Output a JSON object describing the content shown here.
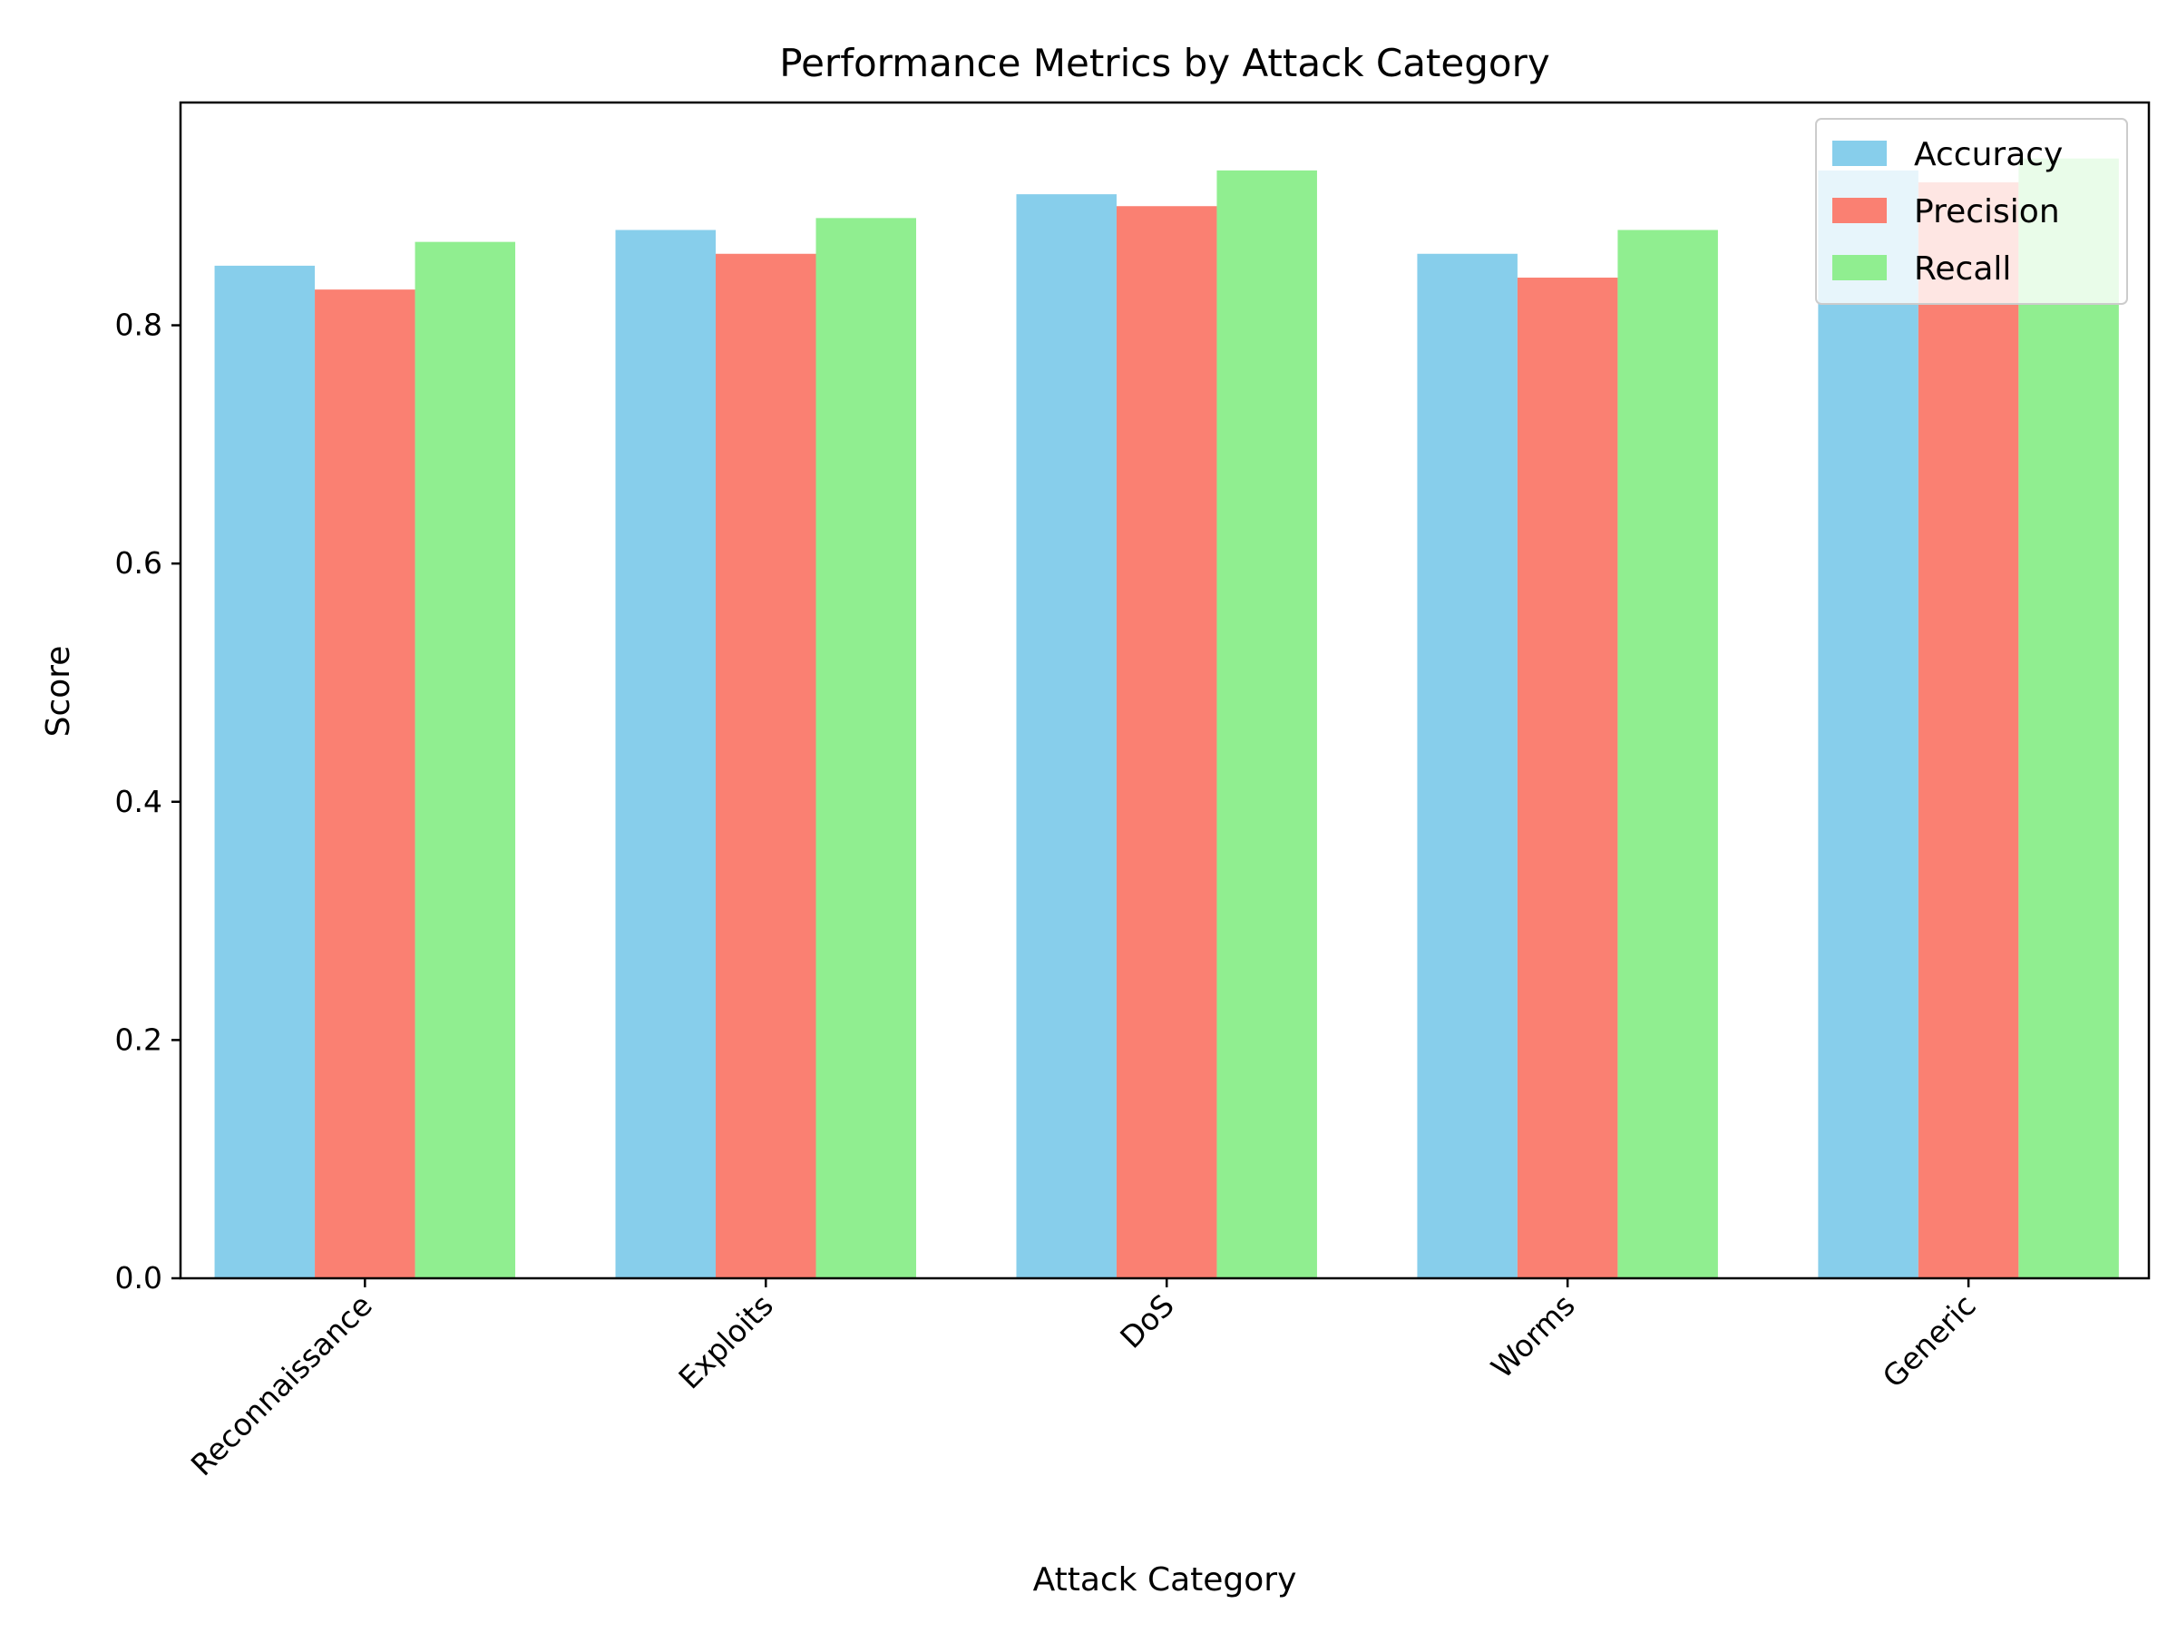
{
  "chart_data": {
    "type": "bar",
    "title": "Performance Metrics by Attack Category",
    "xlabel": "Attack Category",
    "ylabel": "Score",
    "categories": [
      "Reconnaissance",
      "Exploits",
      "DoS",
      "Worms",
      "Generic"
    ],
    "series": [
      {
        "name": "Accuracy",
        "color": "#87CEEB",
        "values": [
          0.85,
          0.88,
          0.91,
          0.86,
          0.93
        ]
      },
      {
        "name": "Precision",
        "color": "#FA8072",
        "values": [
          0.83,
          0.86,
          0.9,
          0.84,
          0.92
        ]
      },
      {
        "name": "Recall",
        "color": "#90EE90",
        "values": [
          0.87,
          0.89,
          0.93,
          0.88,
          0.94
        ]
      }
    ],
    "ylim": [
      0,
      0.987
    ],
    "yticks": [
      "0.0",
      "0.2",
      "0.4",
      "0.6",
      "0.8"
    ],
    "grid": false,
    "legend_position": "top-right"
  }
}
